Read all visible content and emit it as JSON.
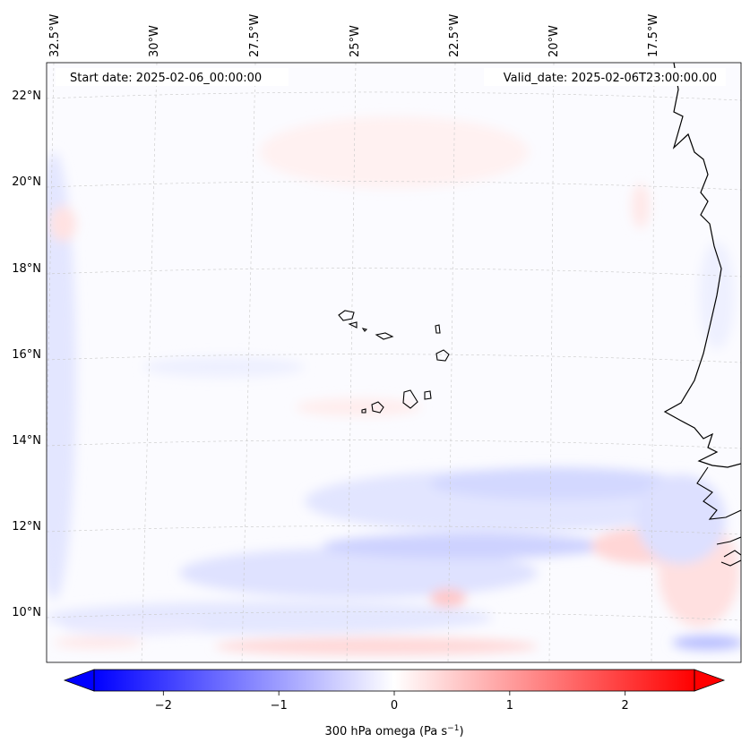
{
  "header": {
    "start_date": "Start date: 2025-02-06_00:00:00",
    "valid_date": "Valid_date: 2025-02-06T23:00:00.00"
  },
  "map": {
    "lon_labels": [
      "32.5°W",
      "30°W",
      "27.5°W",
      "25°W",
      "22.5°W",
      "20°W",
      "17.5°W"
    ],
    "lat_labels": [
      "22°N",
      "20°N",
      "18°N",
      "16°N",
      "14°N",
      "12°N",
      "10°N"
    ],
    "field": "300 hPa omega",
    "features": [
      "Cape Verde islands",
      "West African coastline"
    ]
  },
  "colorbar": {
    "label": "300 hPa omega (Pa s",
    "label_sup": "−1",
    "label_end": ")",
    "ticks": [
      "−2",
      "−1",
      "0",
      "1",
      "2"
    ],
    "tick_values": [
      -2,
      -1,
      0,
      1,
      2
    ],
    "range": [
      -2.6,
      2.6
    ],
    "extend": "both",
    "colormap": "bwr",
    "low_color": "#0000ff",
    "mid_color": "#ffffff",
    "high_color": "#ff0000"
  }
}
